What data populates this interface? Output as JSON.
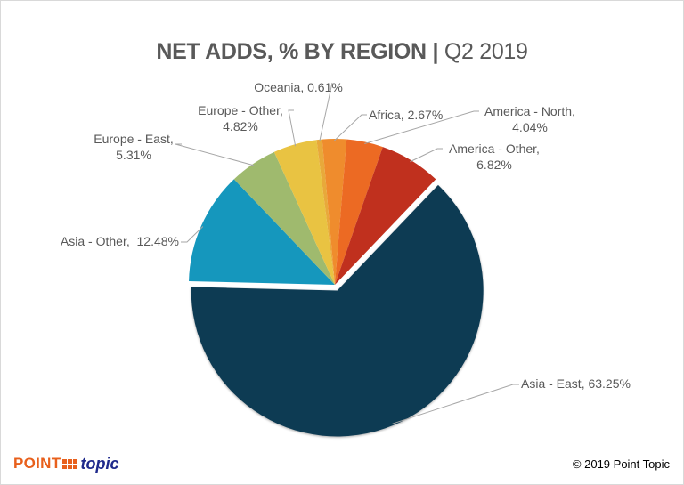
{
  "chart_data": {
    "type": "pie",
    "title": "NET ADDS, % BY REGION",
    "title_separator": "|",
    "subtitle": "Q2 2019",
    "unit": "%",
    "slices": [
      {
        "name": "Asia - East",
        "value": 63.25,
        "label": "Asia - East, 63.25%",
        "color": "#0e3a52",
        "exploded": true
      },
      {
        "name": "Asia - Other",
        "value": 12.48,
        "label": "Asia - Other,  12.48%",
        "color": "#1597bd"
      },
      {
        "name": "Europe - East",
        "value": 5.31,
        "label_lines": [
          "Europe - East,",
          "5.31%"
        ],
        "color": "#9fba6e"
      },
      {
        "name": "Europe - Other",
        "value": 4.82,
        "label_lines": [
          "Europe - Other,",
          "4.82%"
        ],
        "color": "#e9c342"
      },
      {
        "name": "Oceania",
        "value": 0.61,
        "label": "Oceania, 0.61%",
        "color": "#e8a93a"
      },
      {
        "name": "Africa",
        "value": 2.67,
        "label": "Africa, 2.67%",
        "color": "#ef8c2d"
      },
      {
        "name": "America - North",
        "value": 4.04,
        "label_lines": [
          "America - North,",
          "4.04%"
        ],
        "color": "#ec6a23"
      },
      {
        "name": "America - Other",
        "value": 6.82,
        "label_lines": [
          "America - Other,",
          "6.82%"
        ],
        "color": "#c0301e"
      }
    ],
    "legend": "none",
    "data_labels": "outside-with-leader-lines"
  },
  "footer": {
    "logo_point": "POINT",
    "logo_topic": "topic",
    "copyright": "© 2019 Point Topic"
  },
  "colors": {
    "title": "#595959",
    "leader_line": "#a6a6a6",
    "logo_orange": "#e8601c",
    "logo_blue": "#1f2a8c"
  }
}
